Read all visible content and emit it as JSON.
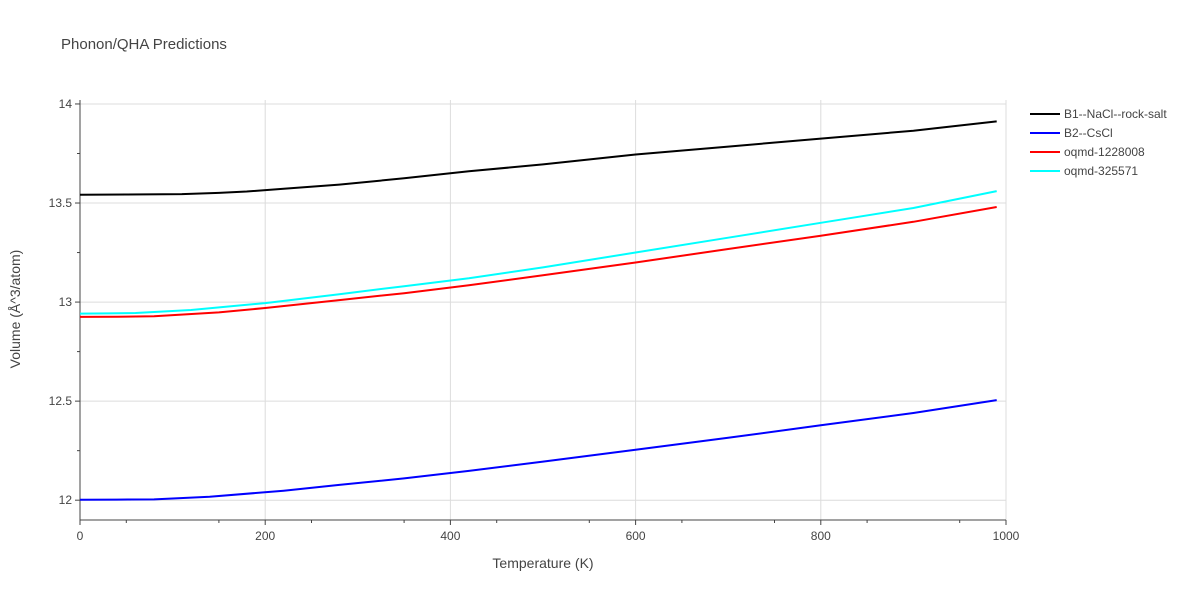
{
  "chart_data": {
    "type": "line",
    "title": "Phonon/QHA Predictions",
    "xlabel": "Temperature (K)",
    "ylabel": "Volume (Å^3/atom)",
    "xlim": [
      0,
      1000
    ],
    "ylim": [
      11.9,
      14.02
    ],
    "xticks": [
      0,
      200,
      400,
      600,
      800,
      1000
    ],
    "yticks": [
      12,
      12.5,
      13,
      13.5,
      14
    ],
    "ytick_labels": [
      "12",
      "12.5",
      "13",
      "13.5",
      "14"
    ],
    "grid": true,
    "legend_position": "top-right",
    "series": [
      {
        "name": "B1--NaCl--rock-salt",
        "color": "#000000",
        "x": [
          0,
          50,
          110,
          150,
          180,
          220,
          280,
          350,
          420,
          500,
          600,
          700,
          800,
          900,
          990
        ],
        "y": [
          13.542,
          13.543,
          13.545,
          13.551,
          13.558,
          13.572,
          13.593,
          13.625,
          13.66,
          13.695,
          13.745,
          13.785,
          13.825,
          13.865,
          13.912
        ]
      },
      {
        "name": "B2--CsCl",
        "color": "#0000ff",
        "x": [
          0,
          40,
          80,
          140,
          220,
          280,
          350,
          420,
          500,
          600,
          700,
          800,
          900,
          990
        ],
        "y": [
          12.002,
          12.003,
          12.004,
          12.017,
          12.048,
          12.077,
          12.11,
          12.148,
          12.195,
          12.255,
          12.315,
          12.378,
          12.44,
          12.505
        ]
      },
      {
        "name": "oqmd-1228008",
        "color": "#ff0000",
        "x": [
          0,
          40,
          80,
          150,
          200,
          280,
          350,
          420,
          500,
          600,
          700,
          800,
          900,
          990
        ],
        "y": [
          12.925,
          12.926,
          12.928,
          12.948,
          12.97,
          13.01,
          13.045,
          13.085,
          13.135,
          13.2,
          13.268,
          13.335,
          13.405,
          13.48
        ]
      },
      {
        "name": "oqmd-325571",
        "color": "#00ffff",
        "x": [
          0,
          30,
          60,
          120,
          200,
          280,
          350,
          420,
          500,
          600,
          700,
          800,
          900,
          990
        ],
        "y": [
          12.942,
          12.943,
          12.945,
          12.96,
          12.995,
          13.04,
          13.08,
          13.12,
          13.175,
          13.25,
          13.325,
          13.4,
          13.475,
          13.56
        ]
      }
    ]
  }
}
